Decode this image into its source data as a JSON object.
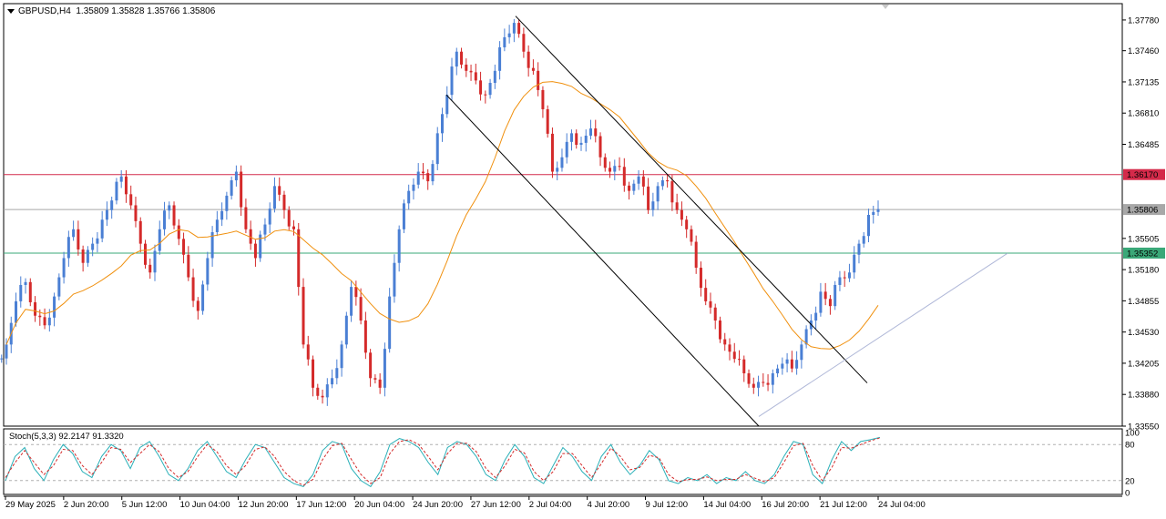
{
  "header": {
    "symbol": "GBPUSD,H4",
    "ohlc": "1.35809 1.35828 1.35766 1.35806"
  },
  "stoch_header": {
    "label": "Stoch(5,3,3)",
    "values": "92.2147 91.3320"
  },
  "colors": {
    "bull": "#4a7fd4",
    "bear": "#d42a2a",
    "ma": "#f0900e",
    "resistance": "#d42a4a",
    "support": "#3aa878",
    "current": "#a8a8a8",
    "channel": "#000000",
    "trendline": "#b0b8d8",
    "stoch_main": "#2ab0b8",
    "stoch_signal": "#d42a2a"
  },
  "chart_data": [
    {
      "type": "candlestick",
      "title": "GBPUSD,H4",
      "ylim": [
        1.3355,
        1.3795
      ],
      "y_ticks": [
        "1.37780",
        "1.37460",
        "1.37135",
        "1.36810",
        "1.36485",
        "1.35505",
        "1.35180",
        "1.34855",
        "1.34530",
        "1.34205",
        "1.33880",
        "1.33550"
      ],
      "x_ticks": [
        "29 May 2025",
        "2 Jun 20:00",
        "5 Jun 12:00",
        "10 Jun 04:00",
        "12 Jun 20:00",
        "17 Jun 12:00",
        "20 Jun 04:00",
        "24 Jun 20:00",
        "27 Jun 12:00",
        "2 Jul 04:00",
        "4 Jul 20:00",
        "9 Jul 12:00",
        "14 Jul 04:00",
        "16 Jul 20:00",
        "21 Jul 12:00",
        "24 Jul 04:00"
      ],
      "price_levels": [
        {
          "name": "resistance",
          "value": 1.3617,
          "label": "1.36170"
        },
        {
          "name": "current",
          "value": 1.35806,
          "label": "1.35806"
        },
        {
          "name": "support",
          "value": 1.35352,
          "label": "1.35352"
        }
      ],
      "close_path": [
        1.344,
        1.3485,
        1.3505,
        1.347,
        1.346,
        1.349,
        1.353,
        1.356,
        1.3525,
        1.3545,
        1.357,
        1.359,
        1.3615,
        1.3585,
        1.3545,
        1.3515,
        1.356,
        1.3585,
        1.355,
        1.351,
        1.3475,
        1.353,
        1.357,
        1.3595,
        1.362,
        1.356,
        1.353,
        1.3565,
        1.3605,
        1.358,
        1.356,
        1.344,
        1.3395,
        1.3385,
        1.3405,
        1.344,
        1.35,
        1.3465,
        1.3405,
        1.3395,
        1.349,
        1.356,
        1.36,
        1.362,
        1.361,
        1.366,
        1.37,
        1.3745,
        1.3725,
        1.3715,
        1.37,
        1.3725,
        1.376,
        1.3775,
        1.3745,
        1.3725,
        1.3685,
        1.362,
        1.3635,
        1.366,
        1.365,
        1.3665,
        1.3635,
        1.362,
        1.3625,
        1.36,
        1.3615,
        1.358,
        1.3605,
        1.361,
        1.358,
        1.356,
        1.352,
        1.3485,
        1.3465,
        1.344,
        1.3425,
        1.341,
        1.3395,
        1.34,
        1.341,
        1.342,
        1.3415,
        1.344,
        1.3465,
        1.3495,
        1.348,
        1.351,
        1.3515,
        1.3545,
        1.3575,
        1.3581
      ],
      "channel": {
        "upper": [
          [
            1.3782,
            0.565
          ],
          [
            1.34,
            0.952
          ]
        ],
        "lower": [
          [
            1.37,
            0.49
          ],
          [
            1.3355,
            0.83
          ]
        ]
      },
      "trendline": [
        [
          1.3365,
          0.832
        ],
        [
          1.3535,
          1.105
        ]
      ]
    },
    {
      "type": "line",
      "title": "Stoch(5,3,3) 92.2147 91.3320",
      "ylim": [
        0,
        100
      ],
      "y_ticks": [
        "100",
        "80",
        "20",
        "0"
      ],
      "levels": [
        80,
        20
      ],
      "series": [
        {
          "values": [
            20,
            60,
            75,
            40,
            20,
            55,
            80,
            65,
            35,
            25,
            60,
            80,
            70,
            40,
            75,
            85,
            60,
            30,
            20,
            40,
            70,
            85,
            60,
            35,
            25,
            55,
            80,
            75,
            50,
            25,
            15,
            10,
            30,
            70,
            85,
            80,
            40,
            20,
            10,
            35,
            80,
            90,
            85,
            75,
            50,
            30,
            75,
            85,
            80,
            60,
            30,
            20,
            55,
            80,
            60,
            25,
            15,
            45,
            75,
            60,
            35,
            20,
            60,
            80,
            50,
            30,
            45,
            70,
            55,
            20,
            15,
            25,
            20,
            30,
            15,
            25,
            20,
            35,
            20,
            15,
            30,
            60,
            85,
            80,
            30,
            15,
            55,
            85,
            70,
            85,
            88,
            92
          ]
        },
        {
          "values": [
            25,
            50,
            70,
            50,
            30,
            45,
            72,
            70,
            45,
            30,
            50,
            75,
            72,
            50,
            65,
            80,
            68,
            40,
            25,
            35,
            60,
            80,
            68,
            45,
            30,
            45,
            72,
            76,
            60,
            35,
            20,
            12,
            22,
            55,
            78,
            82,
            55,
            30,
            15,
            25,
            65,
            85,
            88,
            80,
            60,
            38,
            65,
            82,
            82,
            68,
            40,
            25,
            45,
            72,
            66,
            35,
            20,
            35,
            65,
            65,
            45,
            25,
            48,
            74,
            60,
            38,
            42,
            62,
            58,
            30,
            18,
            22,
            22,
            26,
            20,
            22,
            22,
            30,
            24,
            18,
            25,
            50,
            78,
            82,
            45,
            20,
            42,
            75,
            74,
            80,
            86,
            91
          ]
        }
      ]
    }
  ]
}
